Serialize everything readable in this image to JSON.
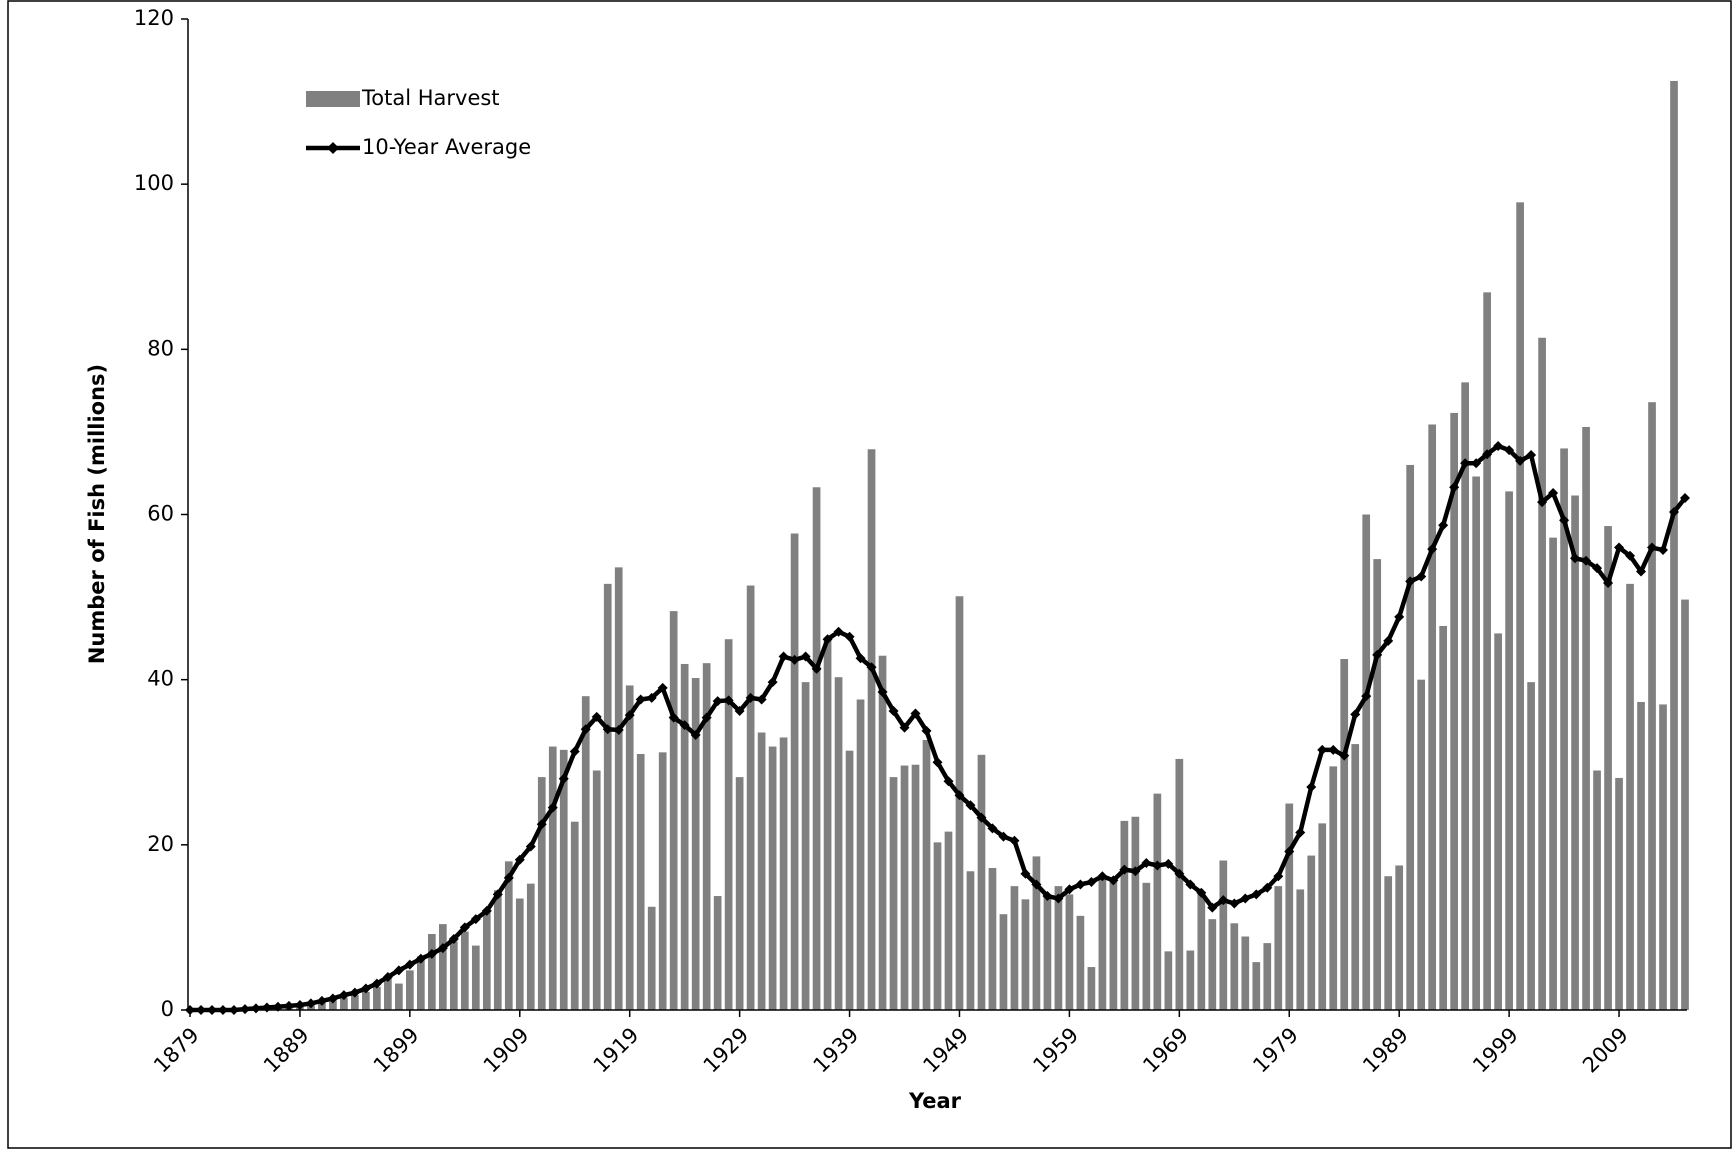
{
  "chart_data": {
    "type": "bar",
    "x_label": "Year",
    "y_label": "Number of Fish (millions)",
    "categories": [
      "1879",
      null,
      null,
      null,
      null,
      null,
      null,
      null,
      null,
      null,
      "1889",
      null,
      null,
      null,
      null,
      null,
      null,
      null,
      null,
      null,
      "1899",
      null,
      null,
      null,
      null,
      null,
      null,
      null,
      null,
      null,
      "1909",
      null,
      null,
      null,
      null,
      null,
      null,
      null,
      null,
      null,
      "1919",
      null,
      null,
      null,
      null,
      null,
      null,
      null,
      null,
      null,
      "1929",
      null,
      null,
      null,
      null,
      null,
      null,
      null,
      null,
      null,
      "1939",
      null,
      null,
      null,
      null,
      null,
      null,
      null,
      null,
      null,
      "1949",
      null,
      null,
      null,
      null,
      null,
      null,
      null,
      null,
      null,
      "1959",
      null,
      null,
      null,
      null,
      null,
      null,
      null,
      null,
      null,
      "1969",
      null,
      null,
      null,
      null,
      null,
      null,
      null,
      null,
      null,
      "1979",
      null,
      null,
      null,
      null,
      null,
      null,
      null,
      null,
      null,
      "1989",
      null,
      null,
      null,
      null,
      null,
      null,
      null,
      null,
      null,
      "1999",
      null,
      null,
      null,
      null,
      null,
      null,
      null,
      null,
      null,
      "2009",
      null,
      null,
      null,
      null,
      null,
      null
    ],
    "series": [
      {
        "name": "Total Harvest",
        "type": "bar",
        "color": "#808080",
        "values": [
          0,
          0,
          0,
          0,
          0.1,
          0.2,
          0.2,
          0.3,
          0.4,
          0.5,
          0.6,
          0.8,
          1.0,
          1.3,
          1.5,
          1.8,
          2.2,
          2.8,
          4.0,
          3.2,
          4.8,
          6.5,
          9.2,
          10.4,
          8.3,
          9.5,
          7.8,
          11.8,
          14.5,
          18,
          13.5,
          15.3,
          28.2,
          31.9,
          31.5,
          22.8,
          38,
          29,
          51.6,
          53.6,
          39.3,
          31,
          12.5,
          31.2,
          48.3,
          41.9,
          40.2,
          42,
          13.8,
          44.9,
          28.2,
          51.4,
          33.6,
          31.9,
          33,
          57.7,
          39.7,
          63.3,
          45,
          40.3,
          31.4,
          37.6,
          67.9,
          42.9,
          28.2,
          29.6,
          29.7,
          32.7,
          20.3,
          21.6,
          50.1,
          16.8,
          30.9,
          17.2,
          11.6,
          15,
          13.4,
          18.6,
          14,
          15,
          14,
          11.4,
          5.2,
          16,
          15.5,
          22.9,
          23.4,
          15.4,
          26.2,
          7.1,
          30.4,
          7.2,
          14,
          11,
          18.1,
          10.5,
          8.9,
          5.8,
          8.1,
          15,
          25,
          14.6,
          18.7,
          22.6,
          29.5,
          42.5,
          32.2,
          60,
          54.6,
          16.2,
          17.5,
          66,
          40,
          70.9,
          46.5,
          72.3,
          76,
          64.6,
          86.9,
          45.6,
          62.8,
          97.8,
          39.7,
          81.4,
          57.2,
          68,
          62.3,
          70.6,
          29,
          58.6,
          28.1,
          51.6,
          37.3,
          73.6,
          37,
          112.5,
          49.7
        ]
      },
      {
        "name": "10-Year Average",
        "type": "line",
        "color": "#000000",
        "values": [
          0,
          0,
          0,
          0,
          0,
          0.1,
          0.2,
          0.3,
          0.4,
          0.5,
          0.6,
          0.8,
          1.1,
          1.4,
          1.8,
          2.1,
          2.6,
          3.2,
          4.0,
          4.8,
          5.5,
          6.2,
          6.8,
          7.5,
          8.6,
          10,
          11,
          12,
          14,
          16,
          18.2,
          19.8,
          22.5,
          24.5,
          28,
          31.3,
          34,
          35.5,
          34,
          33.9,
          35.7,
          37.6,
          37.8,
          39,
          35.4,
          34.5,
          33.3,
          35.4,
          37.4,
          37.5,
          36.2,
          37.8,
          37.6,
          39.7,
          42.8,
          42.4,
          42.8,
          41.3,
          44.9,
          45.8,
          45.2,
          42.6,
          41.5,
          38.5,
          36.2,
          34.2,
          35.9,
          33.8,
          30,
          27.7,
          26,
          24.8,
          23.3,
          22,
          21,
          20.5,
          16.5,
          15.2,
          13.8,
          13.5,
          14.6,
          15.2,
          15.5,
          16.2,
          15.7,
          17,
          16.8,
          17.8,
          17.5,
          17.7,
          16.5,
          15.2,
          14.2,
          12.4,
          13.3,
          12.9,
          13.5,
          14,
          14.8,
          16.2,
          19.2,
          21.5,
          27,
          31.5,
          31.5,
          30.8,
          35.8,
          38,
          43,
          44.7,
          47.6,
          51.9,
          52.5,
          55.8,
          58.7,
          63.3,
          66.2,
          66.2,
          67.3,
          68.3,
          67.8,
          66.5,
          67.2,
          61.5,
          62.6,
          59.3,
          54.7,
          54.4,
          53.5,
          51.7,
          56,
          55,
          53.1,
          56,
          55.7,
          60.3,
          62
        ]
      }
    ],
    "ylim": [
      0,
      120
    ],
    "yticks": [
      0,
      20,
      40,
      60,
      80,
      100,
      120
    ],
    "grid": false,
    "legend": "top-left"
  }
}
